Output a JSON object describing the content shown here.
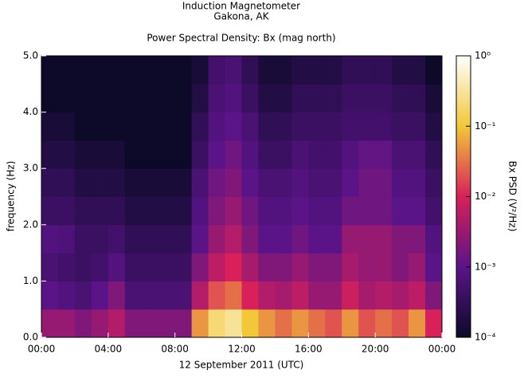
{
  "chart_data": {
    "type": "heatmap",
    "title": "Induction Magnetometer",
    "subtitle": "Gakona, AK",
    "plot_title": "Power Spectral Density: Bx (mag north)",
    "xlabel": "12 September 2011 (UTC)",
    "ylabel": "frequency (Hz)",
    "colorbar_label": "Bx PSD (V²/Hz)",
    "xlim": [
      0,
      24
    ],
    "ylim": [
      0,
      5
    ],
    "xticks": [
      {
        "value": 0,
        "label": "00:00"
      },
      {
        "value": 4,
        "label": "04:00"
      },
      {
        "value": 8,
        "label": "08:00"
      },
      {
        "value": 12,
        "label": "12:00"
      },
      {
        "value": 16,
        "label": "16:00"
      },
      {
        "value": 20,
        "label": "20:00"
      },
      {
        "value": 24,
        "label": "00:00"
      }
    ],
    "yticks": [
      {
        "value": 0,
        "label": "0.0"
      },
      {
        "value": 1,
        "label": "1.0"
      },
      {
        "value": 2,
        "label": "2.0"
      },
      {
        "value": 3,
        "label": "3.0"
      },
      {
        "value": 4,
        "label": "4.0"
      },
      {
        "value": 5,
        "label": "5.0"
      }
    ],
    "zlim": [
      0.0001,
      1
    ],
    "zscale": "log",
    "zticks": [
      {
        "value": 0.0001,
        "label": "10⁻⁴"
      },
      {
        "value": 0.001,
        "label": "10⁻³"
      },
      {
        "value": 0.01,
        "label": "10⁻²"
      },
      {
        "value": 0.1,
        "label": "10⁻¹"
      },
      {
        "value": 1,
        "label": "10⁰"
      }
    ],
    "x_bins": [
      0,
      1,
      2,
      3,
      4,
      5,
      6,
      7,
      8,
      9,
      10,
      11,
      12,
      13,
      14,
      15,
      16,
      17,
      18,
      19,
      20,
      21,
      22,
      23,
      24
    ],
    "y_bins": [
      0,
      0.5,
      1,
      1.5,
      2,
      2.5,
      3,
      3.5,
      4,
      4.5,
      5
    ],
    "z": [
      [
        0.003,
        0.003,
        0.002,
        0.003,
        0.005,
        0.002,
        0.002,
        0.002,
        0.002,
        0.05,
        0.2,
        0.3,
        0.1,
        0.05,
        0.03,
        0.05,
        0.03,
        0.02,
        0.05,
        0.02,
        0.03,
        0.02,
        0.05,
        0.01
      ],
      [
        0.001,
        0.0008,
        0.0006,
        0.001,
        0.002,
        0.0006,
        0.0006,
        0.0006,
        0.0006,
        0.005,
        0.02,
        0.03,
        0.01,
        0.005,
        0.004,
        0.006,
        0.003,
        0.003,
        0.008,
        0.004,
        0.005,
        0.004,
        0.006,
        0.002
      ],
      [
        0.0006,
        0.0005,
        0.0004,
        0.0005,
        0.0008,
        0.0004,
        0.0004,
        0.0004,
        0.0004,
        0.002,
        0.006,
        0.01,
        0.004,
        0.002,
        0.002,
        0.003,
        0.002,
        0.002,
        0.004,
        0.003,
        0.003,
        0.002,
        0.003,
        0.001
      ],
      [
        0.0008,
        0.0007,
        0.0004,
        0.0004,
        0.0005,
        0.0003,
        0.0003,
        0.0003,
        0.0003,
        0.001,
        0.003,
        0.005,
        0.002,
        0.001,
        0.001,
        0.0015,
        0.001,
        0.001,
        0.003,
        0.003,
        0.003,
        0.002,
        0.002,
        0.0008
      ],
      [
        0.0004,
        0.0004,
        0.0003,
        0.0003,
        0.0003,
        0.0002,
        0.0002,
        0.0002,
        0.0002,
        0.0008,
        0.002,
        0.003,
        0.0015,
        0.0008,
        0.0008,
        0.001,
        0.0008,
        0.0008,
        0.0015,
        0.0015,
        0.0015,
        0.001,
        0.001,
        0.0005
      ],
      [
        0.0003,
        0.0003,
        0.0002,
        0.0002,
        0.0002,
        0.00015,
        0.00015,
        0.00015,
        0.00015,
        0.0006,
        0.0015,
        0.002,
        0.001,
        0.0006,
        0.0006,
        0.0008,
        0.0006,
        0.0006,
        0.001,
        0.0015,
        0.0015,
        0.0008,
        0.0008,
        0.0004
      ],
      [
        0.0002,
        0.0002,
        0.00015,
        0.00015,
        0.00015,
        0.0001,
        0.0001,
        0.0001,
        0.0001,
        0.0004,
        0.001,
        0.0015,
        0.0008,
        0.0004,
        0.0004,
        0.0006,
        0.0005,
        0.0005,
        0.0008,
        0.0012,
        0.0012,
        0.0006,
        0.0006,
        0.0003
      ],
      [
        0.00015,
        0.00015,
        0.0001,
        0.0001,
        0.0001,
        0.0001,
        0.0001,
        0.0001,
        0.0001,
        0.0003,
        0.0008,
        0.001,
        0.0006,
        0.0003,
        0.0003,
        0.0004,
        0.0004,
        0.0004,
        0.0005,
        0.0005,
        0.0005,
        0.0004,
        0.0004,
        0.0002
      ],
      [
        0.0001,
        0.0001,
        0.0001,
        0.0001,
        0.0001,
        0.0001,
        0.0001,
        0.0001,
        0.0001,
        0.0002,
        0.0006,
        0.0008,
        0.0004,
        0.0002,
        0.0002,
        0.0003,
        0.0003,
        0.0003,
        0.0004,
        0.0004,
        0.0004,
        0.0003,
        0.0003,
        0.00015
      ],
      [
        0.0001,
        0.0001,
        0.0001,
        0.0001,
        0.0001,
        0.0001,
        0.0001,
        0.0001,
        0.0001,
        0.00015,
        0.0005,
        0.0006,
        0.0003,
        0.00015,
        0.00015,
        0.0002,
        0.0002,
        0.0002,
        0.0003,
        0.0003,
        0.0003,
        0.0002,
        0.0002,
        0.0001
      ]
    ]
  }
}
